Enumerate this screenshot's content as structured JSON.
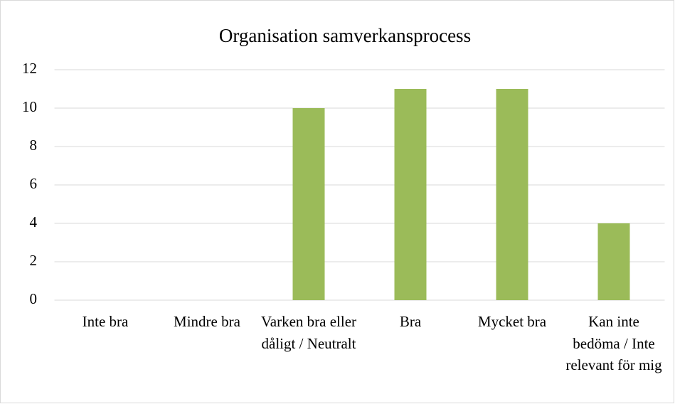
{
  "chart_data": {
    "type": "bar",
    "title": "Organisation samverkansprocess",
    "categories": [
      "Inte bra",
      "Mindre bra",
      "Varken bra eller dåligt / Neutralt",
      "Bra",
      "Mycket bra",
      "Kan inte bedöma / Inte relevant för mig"
    ],
    "values": [
      0,
      0,
      10,
      11,
      11,
      4
    ],
    "color": "#9bbb59",
    "ylim": [
      0,
      12
    ],
    "yticks": [
      0,
      2,
      4,
      6,
      8,
      10,
      12
    ],
    "grid": true
  }
}
